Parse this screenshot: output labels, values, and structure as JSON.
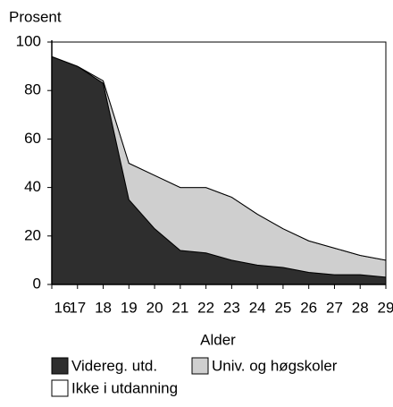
{
  "chart_data": {
    "type": "area",
    "stacked": true,
    "ylabel": "Prosent",
    "xlabel": "Alder",
    "x": [
      16,
      17,
      18,
      19,
      20,
      21,
      22,
      23,
      24,
      25,
      26,
      27,
      28,
      29
    ],
    "series": [
      {
        "name": "Videreg. utd.",
        "color": "#2e2e2e",
        "values": [
          94,
          90,
          83,
          35,
          23,
          14,
          13,
          10,
          8,
          7,
          5,
          4,
          4,
          3
        ]
      },
      {
        "name": "Univ. og høgskoler",
        "color": "#cfcfcf",
        "values": [
          0,
          0,
          1,
          15,
          22,
          26,
          27,
          26,
          21,
          16,
          13,
          11,
          8,
          7
        ]
      },
      {
        "name": "Ikke i utdanning",
        "color": "#ffffff",
        "values": [
          6,
          10,
          16,
          50,
          55,
          60,
          60,
          64,
          71,
          77,
          82,
          85,
          88,
          90
        ]
      }
    ],
    "xlim": [
      16,
      29
    ],
    "xticks": [
      16,
      17,
      18,
      19,
      20,
      21,
      22,
      23,
      24,
      25,
      26,
      27,
      28,
      29
    ],
    "ylim": [
      0,
      100
    ],
    "yticks": [
      0,
      20,
      40,
      60,
      80,
      100
    ],
    "legend": "bottom"
  }
}
